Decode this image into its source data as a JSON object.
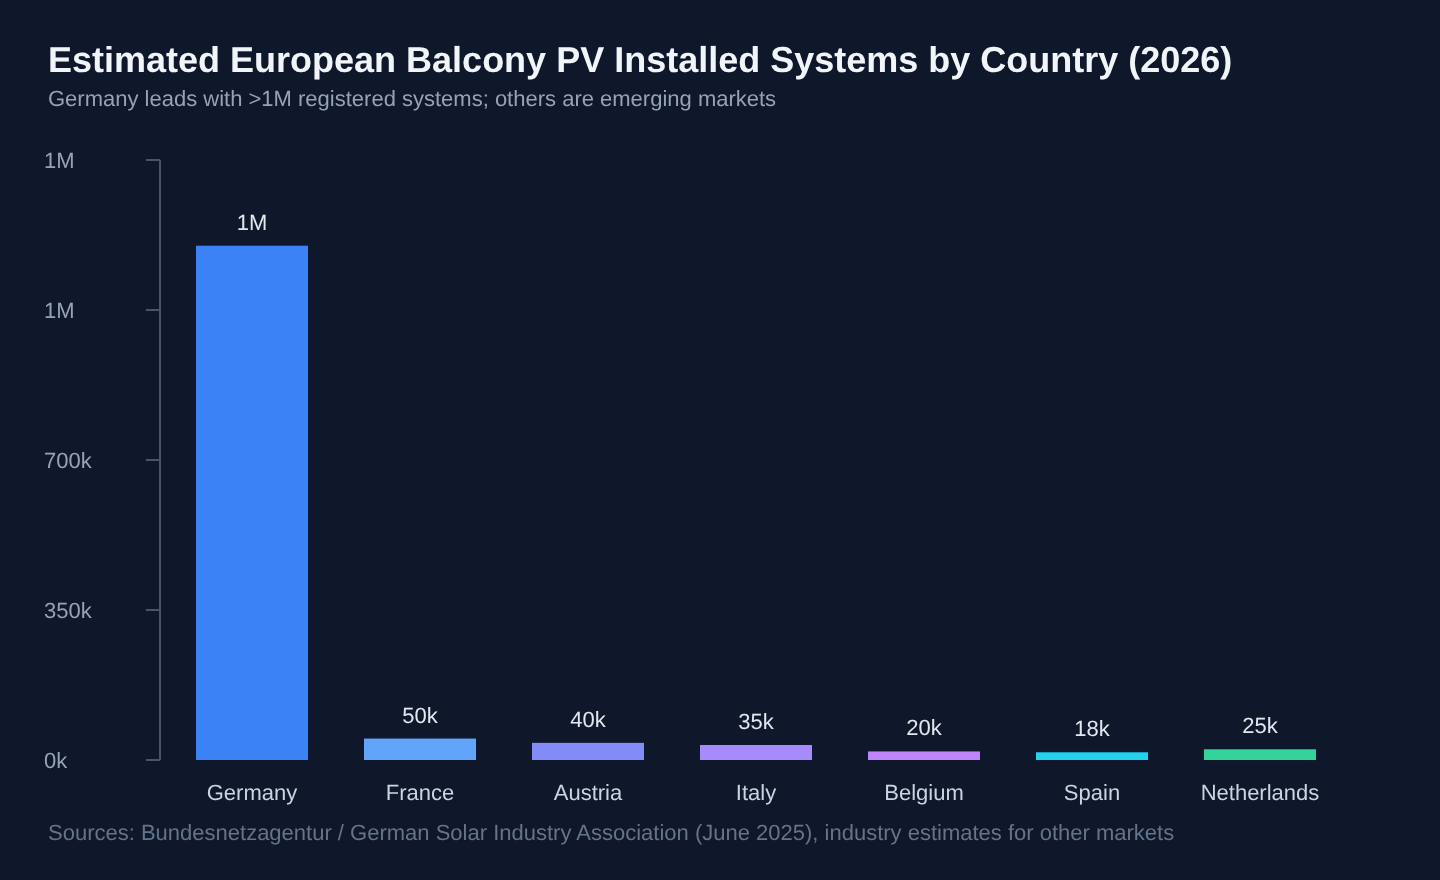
{
  "chart_data": {
    "type": "bar",
    "title": "Estimated European Balcony PV Installed Systems by Country (2026)",
    "subtitle": "Germany leads with >1M registered systems; others are emerging markets",
    "categories": [
      "Germany",
      "France",
      "Austria",
      "Italy",
      "Belgium",
      "Spain",
      "Netherlands"
    ],
    "values": [
      1200000,
      50000,
      40000,
      35000,
      20000,
      18000,
      25000
    ],
    "colors": [
      "#3b82f6",
      "#60a5fa",
      "#818cf8",
      "#a78bfa",
      "#c084fc",
      "#22d3ee",
      "#34d399"
    ],
    "value_labels": [
      "1M",
      "50k",
      "40k",
      "35k",
      "20k",
      "18k",
      "25k"
    ],
    "ylim": [
      0,
      1400000
    ],
    "yticks": [
      {
        "value": 0,
        "label": "0k"
      },
      {
        "value": 350000,
        "label": "350k"
      },
      {
        "value": 700000,
        "label": "700k"
      },
      {
        "value": 1050000,
        "label": "1M"
      },
      {
        "value": 1400000,
        "label": "1M"
      }
    ],
    "grid": false,
    "annotations": [
      "Sources: Bundesnetzagentur / German Solar Industry Association (June 2025), industry estimates for other markets"
    ]
  }
}
